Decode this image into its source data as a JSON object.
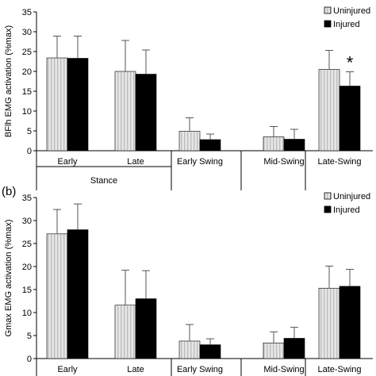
{
  "chart_data": [
    {
      "type": "bar",
      "panel_label": "",
      "ylabel": "BFlh EMG activation (%max)",
      "ylim": [
        0,
        35
      ],
      "yticks": [
        0,
        5,
        10,
        15,
        20,
        25,
        30,
        35
      ],
      "categories": [
        "Early",
        "Late",
        "Early Swing",
        "Mid-Swing",
        "Late-Swing"
      ],
      "groups": [
        {
          "label": "Stance",
          "categories": [
            "Early",
            "Late"
          ]
        },
        {
          "label": "",
          "categories": [
            "Early Swing"
          ]
        },
        {
          "label": "",
          "categories": [
            "Mid-Swing"
          ]
        },
        {
          "label": "",
          "categories": [
            "Late-Swing"
          ]
        }
      ],
      "series": [
        {
          "name": "Uninjured",
          "values": [
            23.4,
            20.0,
            4.9,
            3.5,
            20.5
          ],
          "errors": [
            5.5,
            7.8,
            3.4,
            2.6,
            4.8
          ]
        },
        {
          "name": "Injured",
          "values": [
            23.3,
            19.3,
            2.8,
            2.9,
            16.3
          ],
          "errors": [
            5.6,
            6.1,
            1.4,
            2.5,
            3.6
          ]
        }
      ],
      "annotations": [
        {
          "category": "Late-Swing",
          "series": "Injured",
          "text": "*"
        }
      ],
      "legend": "top-right",
      "grid": false
    },
    {
      "type": "bar",
      "panel_label": "(b)",
      "ylabel": "Gmax EMG activation (%max)",
      "ylim": [
        0,
        35
      ],
      "yticks": [
        0,
        5,
        10,
        15,
        20,
        25,
        30,
        35
      ],
      "categories": [
        "Early",
        "Late",
        "Early Swing",
        "Mid-Swing",
        "Late-Swing"
      ],
      "series": [
        {
          "name": "Uninjured",
          "values": [
            27.1,
            11.6,
            3.8,
            3.4,
            15.3
          ],
          "errors": [
            5.3,
            7.6,
            3.6,
            2.4,
            4.8
          ]
        },
        {
          "name": "Injured",
          "values": [
            28.0,
            13.0,
            3.0,
            4.4,
            15.7
          ],
          "errors": [
            5.6,
            6.1,
            1.3,
            2.4,
            3.7
          ]
        }
      ],
      "legend": "top-right",
      "grid": false
    }
  ],
  "colors": {
    "uninjured_fill": "#e6e6e6",
    "uninjured_stripe": "#bdbdbd",
    "injured_fill": "#000000",
    "axis": "#000000"
  }
}
